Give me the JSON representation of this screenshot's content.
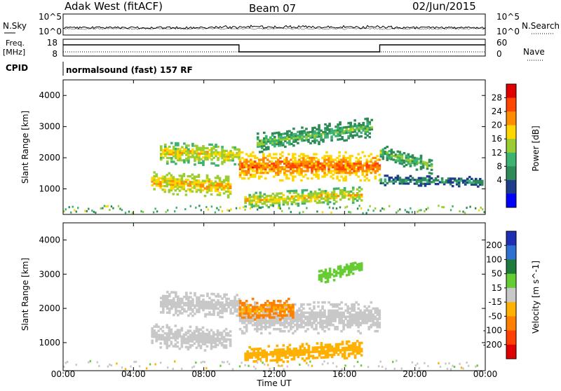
{
  "header": {
    "station": "Adak West (fitACF)",
    "beam": "Beam 07",
    "date": "02/Jun/2015"
  },
  "top_panels": {
    "nsky_label": "N.Sky",
    "nsky_ticks": [
      "10^5",
      "10^0"
    ],
    "nsearch_label": "N.Search",
    "nsearch_ticks": [
      "10^5",
      "10^0"
    ],
    "freq_label_1": "Freq.",
    "freq_label_2": "[MHz]",
    "freq_ticks": [
      "18",
      "8"
    ],
    "nave_label": "Nave",
    "nave_ticks": [
      "60",
      "0"
    ],
    "cpid_label": "CPID",
    "cpid_text": "normalsound (fast) 157 RF"
  },
  "x_axis": {
    "label": "Time UT",
    "ticks": [
      "00:00",
      "04:00",
      "08:00",
      "12:00",
      "16:00",
      "20:00",
      "00:00"
    ]
  },
  "power_panel": {
    "y_label": "Slant Range [km]",
    "y_ticks": [
      "4000",
      "3000",
      "2000",
      "1000"
    ],
    "cbar_label": "Power [dB]",
    "cbar_ticks": [
      "28",
      "24",
      "20",
      "16",
      "12",
      "8",
      "4"
    ],
    "cbar_colors": [
      "#e00000",
      "#ff4500",
      "#ff8c00",
      "#ffd700",
      "#9acd32",
      "#3cb371",
      "#2e8b57",
      "#1e3c8c",
      "#0000ff"
    ]
  },
  "velocity_panel": {
    "y_label": "Slant Range [km]",
    "y_ticks": [
      "4000",
      "3000",
      "2000",
      "1000"
    ],
    "cbar_label": "Velocity [m s^-1]",
    "cbar_ticks": [
      "200",
      "100",
      "50",
      "15",
      "-15",
      "-50",
      "-100",
      "-200"
    ],
    "cbar_colors": [
      "#1e2fb4",
      "#2e6fcf",
      "#1e7a3a",
      "#66cc33",
      "#c8c8c8",
      "#ffb000",
      "#ff8000",
      "#ff4000",
      "#e00000"
    ]
  },
  "chart_data": {
    "type": "heatmap",
    "x_range_hours": [
      0,
      24
    ],
    "y_range_km": [
      180,
      4500
    ],
    "power_range_db": [
      0,
      30
    ],
    "velocity_range_ms": [
      -250,
      250
    ],
    "power_bands": [
      {
        "start": 5.0,
        "end": 9.5,
        "center_start": 1200,
        "center_end": 1050,
        "width": 350,
        "level_db": 18
      },
      {
        "start": 5.5,
        "end": 10.0,
        "center_start": 2150,
        "center_end": 2050,
        "width": 350,
        "level_db": 16
      },
      {
        "start": 10.0,
        "end": 18.0,
        "center_start": 1700,
        "center_end": 1700,
        "width": 450,
        "level_db": 22
      },
      {
        "start": 10.3,
        "end": 17.0,
        "center_start": 600,
        "center_end": 800,
        "width": 250,
        "level_db": 16
      },
      {
        "start": 11.0,
        "end": 17.5,
        "center_start": 2450,
        "center_end": 2950,
        "width": 300,
        "level_db": 10
      },
      {
        "start": 18.0,
        "end": 23.8,
        "center_start": 1250,
        "center_end": 1200,
        "width": 150,
        "level_db": 6
      },
      {
        "start": 18.0,
        "end": 21.0,
        "center_start": 2150,
        "center_end": 1700,
        "width": 250,
        "level_db": 10
      }
    ],
    "velocity_bands": [
      {
        "start": 5.0,
        "end": 9.5,
        "center_start": 1200,
        "center_end": 1050,
        "width": 350,
        "velocity_ms": -5
      },
      {
        "start": 5.5,
        "end": 10.0,
        "center_start": 2150,
        "center_end": 2050,
        "width": 350,
        "velocity_ms": -5
      },
      {
        "start": 10.0,
        "end": 18.0,
        "center_start": 1700,
        "center_end": 1700,
        "width": 450,
        "velocity_ms": -5
      },
      {
        "start": 10.0,
        "end": 13.0,
        "center_start": 1950,
        "center_end": 1950,
        "width": 300,
        "velocity_ms": -50
      },
      {
        "start": 10.3,
        "end": 17.0,
        "center_start": 600,
        "center_end": 800,
        "width": 250,
        "velocity_ms": -40
      },
      {
        "start": 14.5,
        "end": 17.0,
        "center_start": 2900,
        "center_end": 3200,
        "width": 200,
        "velocity_ms": 40
      }
    ]
  }
}
